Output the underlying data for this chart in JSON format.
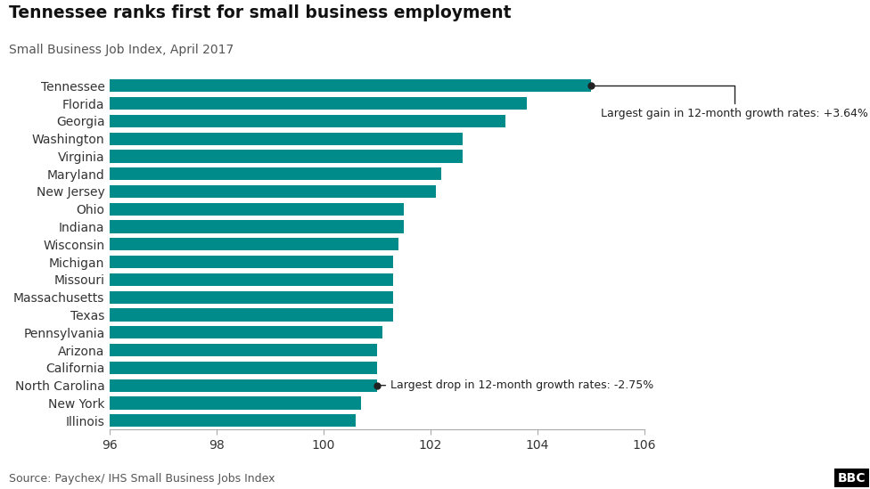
{
  "title": "Tennessee ranks first for small business employment",
  "subtitle": "Small Business Job Index, April 2017",
  "source": "Source: Paychex/ IHS Small Business Jobs Index",
  "bar_color": "#008B8B",
  "background_color": "#ffffff",
  "states": [
    "Tennessee",
    "Florida",
    "Georgia",
    "Washington",
    "Virginia",
    "Maryland",
    "New Jersey",
    "Ohio",
    "Indiana",
    "Wisconsin",
    "Michigan",
    "Missouri",
    "Massachusetts",
    "Texas",
    "Pennsylvania",
    "Arizona",
    "California",
    "North Carolina",
    "New York",
    "Illinois"
  ],
  "values": [
    105.0,
    103.8,
    103.4,
    102.6,
    102.6,
    102.2,
    102.1,
    101.5,
    101.5,
    101.4,
    101.3,
    101.3,
    101.3,
    101.3,
    101.1,
    101.0,
    101.0,
    101.0,
    100.7,
    100.6
  ],
  "xlim": [
    96,
    106
  ],
  "xticks": [
    96,
    98,
    100,
    102,
    104,
    106
  ],
  "annotation_gain_text": "Largest gain in 12-month growth rates: +3.64%",
  "annotation_drop_text": "Largest drop in 12-month growth rates: -2.75%"
}
